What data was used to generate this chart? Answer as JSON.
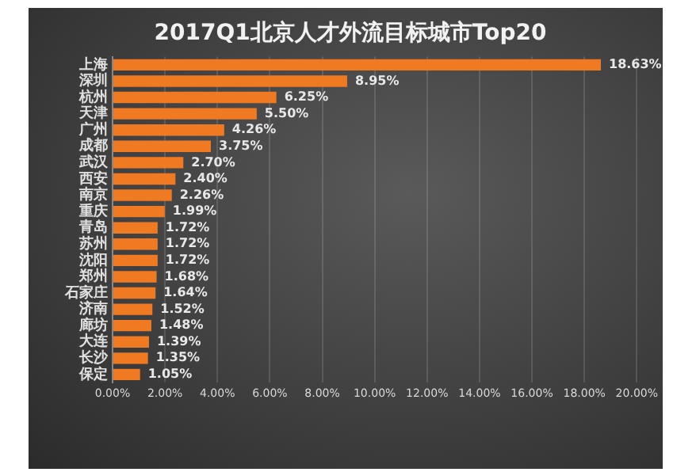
{
  "chart_data": {
    "type": "bar",
    "orientation": "horizontal",
    "title": "2017Q1北京人才外流目标城市Top20",
    "categories": [
      "上海",
      "深圳",
      "杭州",
      "天津",
      "广州",
      "成都",
      "武汉",
      "西安",
      "南京",
      "重庆",
      "青岛",
      "苏州",
      "沈阳",
      "郑州",
      "石家庄",
      "济南",
      "廊坊",
      "大连",
      "长沙",
      "保定"
    ],
    "values": [
      18.63,
      8.95,
      6.25,
      5.5,
      4.26,
      3.75,
      2.7,
      2.4,
      2.26,
      1.99,
      1.72,
      1.72,
      1.72,
      1.68,
      1.64,
      1.52,
      1.48,
      1.39,
      1.35,
      1.05
    ],
    "value_labels": [
      "18.63%",
      "8.95%",
      "6.25%",
      "5.50%",
      "4.26%",
      "3.75%",
      "2.70%",
      "2.40%",
      "2.26%",
      "1.99%",
      "1.72%",
      "1.72%",
      "1.72%",
      "1.68%",
      "1.64%",
      "1.52%",
      "1.48%",
      "1.39%",
      "1.35%",
      "1.05%"
    ],
    "color": "#f07a22",
    "xlim": [
      0,
      20
    ],
    "xticks": [
      {
        "value": 0,
        "label": "0.00%"
      },
      {
        "value": 2,
        "label": "2.00%"
      },
      {
        "value": 4,
        "label": "4.00%"
      },
      {
        "value": 6,
        "label": "6.00%"
      },
      {
        "value": 8,
        "label": "8.00%"
      },
      {
        "value": 10,
        "label": "10.00%"
      },
      {
        "value": 12,
        "label": "12.00%"
      },
      {
        "value": 14,
        "label": "14.00%"
      },
      {
        "value": 16,
        "label": "16.00%"
      },
      {
        "value": 18,
        "label": "18.00%"
      },
      {
        "value": 20,
        "label": "20.00%"
      }
    ],
    "grid": "x"
  }
}
